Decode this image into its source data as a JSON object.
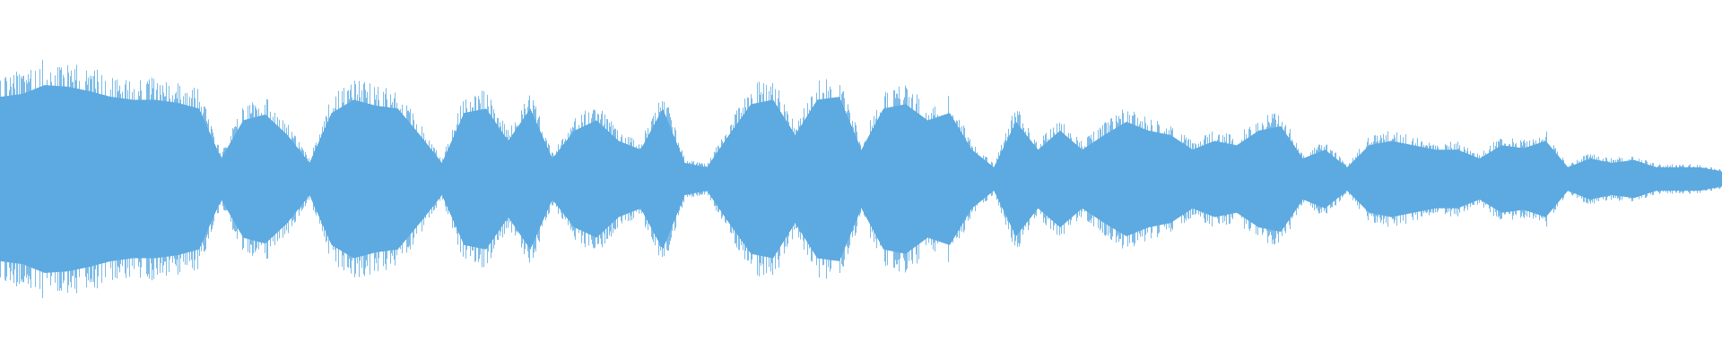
{
  "waveform": {
    "color": "#5DAAE1",
    "background": "#FFFFFF",
    "peak_amplitude_envelope": [
      0.56,
      0.58,
      0.64,
      0.63,
      0.6,
      0.56,
      0.54,
      0.54,
      0.52,
      0.48,
      0.14,
      0.4,
      0.44,
      0.3,
      0.11,
      0.45,
      0.54,
      0.5,
      0.48,
      0.3,
      0.11,
      0.45,
      0.48,
      0.26,
      0.48,
      0.14,
      0.33,
      0.4,
      0.26,
      0.2,
      0.48,
      0.11,
      0.08,
      0.3,
      0.51,
      0.54,
      0.3,
      0.54,
      0.56,
      0.2,
      0.48,
      0.51,
      0.4,
      0.45,
      0.2,
      0.08,
      0.39,
      0.2,
      0.33,
      0.2,
      0.3,
      0.39,
      0.33,
      0.3,
      0.2,
      0.26,
      0.23,
      0.33,
      0.36,
      0.14,
      0.2,
      0.08,
      0.23,
      0.26,
      0.23,
      0.2,
      0.2,
      0.14,
      0.23,
      0.21,
      0.26,
      0.08,
      0.14,
      0.11,
      0.13,
      0.08,
      0.08,
      0.08,
      0.05
    ]
  }
}
